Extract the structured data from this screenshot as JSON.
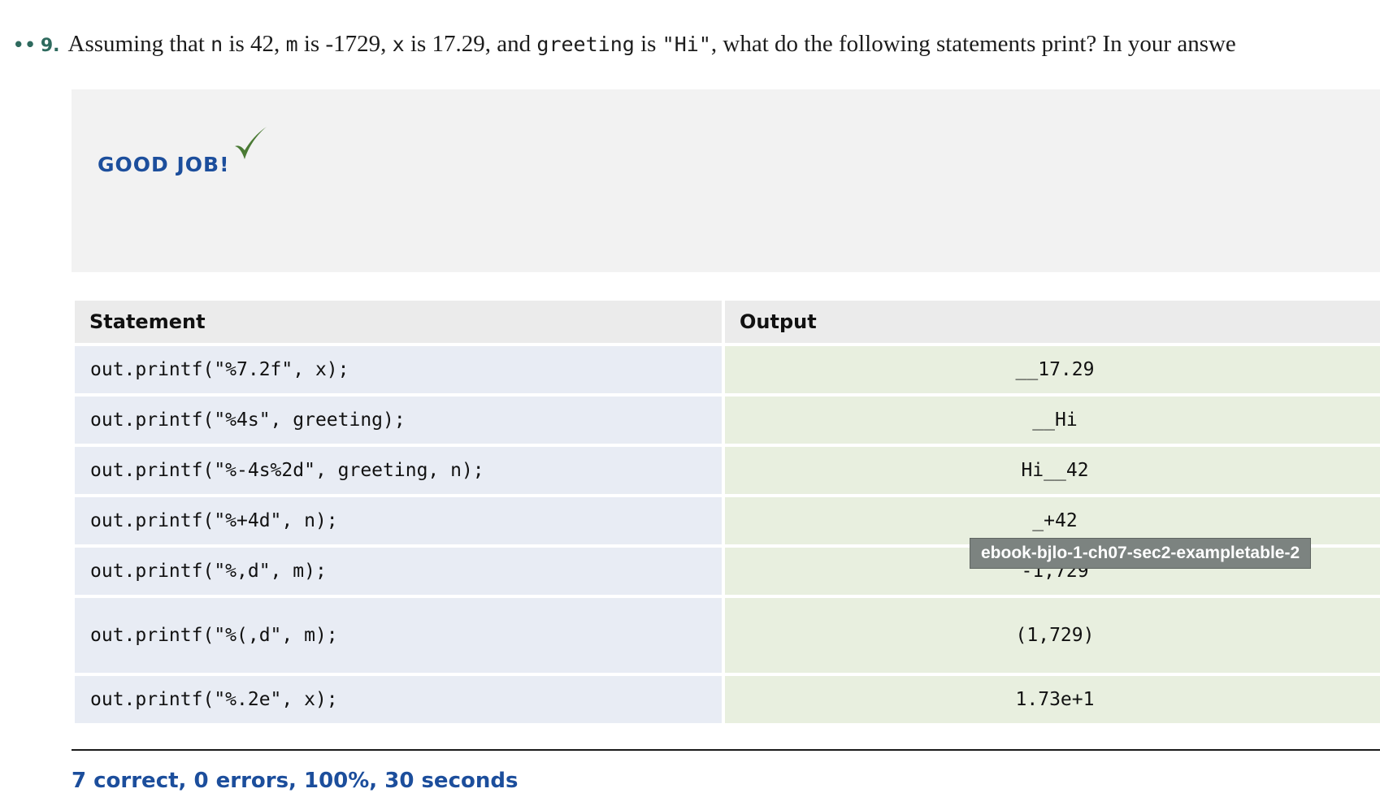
{
  "question": {
    "bullets": "••",
    "number": "9.",
    "parts": [
      "Assuming that ",
      "n",
      " is 42, ",
      "m",
      " is -1729, ",
      "x",
      " is 17.29, and ",
      "greeting",
      " is ",
      "\"Hi\"",
      ", what do the following statements print? In your answe"
    ]
  },
  "feedback": {
    "label": "GOOD JOB!",
    "check_icon": "checkmark-icon",
    "check_color": "#4a7a34"
  },
  "table": {
    "headers": [
      "Statement",
      "Output"
    ],
    "rows": [
      {
        "statement": "out.printf(\"%7.2f\", x);",
        "output": "__17.29"
      },
      {
        "statement": "out.printf(\"%4s\", greeting);",
        "output": "__Hi"
      },
      {
        "statement": "out.printf(\"%-4s%2d\", greeting, n);",
        "output": "Hi__42"
      },
      {
        "statement": "out.printf(\"%+4d\", n);",
        "output": "_+42"
      },
      {
        "statement": "out.printf(\"%,d\", m);",
        "output": "-1,729"
      },
      {
        "statement": "out.printf(\"%(,d\", m);",
        "output": "(1,729)"
      },
      {
        "statement": "out.printf(\"%.2e\", x);",
        "output": "1.73e+1"
      }
    ]
  },
  "tooltip": "ebook-bjlo-1-ch07-sec2-exampletable-2",
  "summary": "7 correct, 0 errors, 100%, 30 seconds"
}
